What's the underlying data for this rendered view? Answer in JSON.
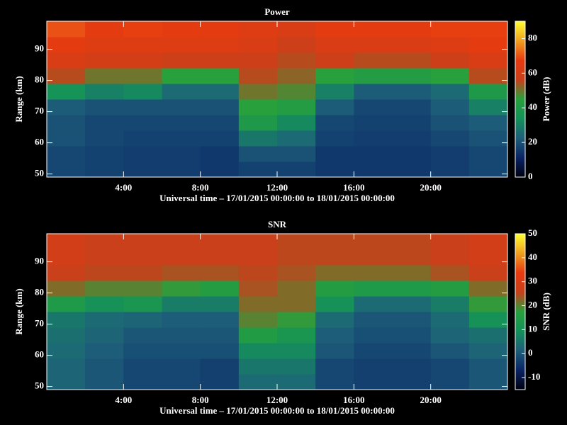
{
  "chart_data": [
    {
      "type": "heatmap",
      "title": "Power",
      "xlabel": "Universal time – 17/01/2015 00:00:00 to 18/01/2015 00:00:00",
      "ylabel": "Range (km)",
      "colorbar_label": "Power (dB)",
      "xbins": [
        0,
        2,
        4,
        6,
        8,
        10,
        12,
        14,
        16,
        18,
        20,
        22,
        24
      ],
      "ybins": [
        49,
        54,
        59,
        64,
        69,
        74,
        79,
        84,
        89,
        94,
        99
      ],
      "values": [
        [
          18,
          17,
          16,
          16,
          15,
          17,
          17,
          15,
          15,
          15,
          16,
          18
        ],
        [
          18,
          17,
          16,
          16,
          15,
          20,
          20,
          15,
          15,
          15,
          16,
          18
        ],
        [
          20,
          18,
          17,
          17,
          17,
          28,
          25,
          17,
          16,
          16,
          18,
          20
        ],
        [
          20,
          18,
          18,
          18,
          18,
          40,
          32,
          18,
          17,
          17,
          20,
          22
        ],
        [
          22,
          20,
          20,
          20,
          20,
          45,
          42,
          22,
          18,
          18,
          22,
          30
        ],
        [
          35,
          30,
          32,
          25,
          25,
          50,
          48,
          30,
          22,
          22,
          25,
          40
        ],
        [
          55,
          50,
          50,
          45,
          45,
          55,
          52,
          45,
          42,
          42,
          45,
          55
        ],
        [
          62,
          60,
          60,
          58,
          58,
          58,
          55,
          58,
          55,
          55,
          58,
          62
        ],
        [
          66,
          64,
          64,
          64,
          64,
          62,
          58,
          62,
          62,
          62,
          64,
          66
        ],
        [
          70,
          66,
          68,
          66,
          66,
          64,
          62,
          66,
          66,
          66,
          68,
          68
        ]
      ],
      "xlim": [
        0,
        24
      ],
      "xticks": [
        {
          "value": 4,
          "label": "4:00"
        },
        {
          "value": 8,
          "label": "8:00"
        },
        {
          "value": 12,
          "label": "12:00"
        },
        {
          "value": 16,
          "label": "16:00"
        },
        {
          "value": 20,
          "label": "20:00"
        }
      ],
      "ylim": [
        49,
        99
      ],
      "yticks": [
        50,
        60,
        70,
        80,
        90
      ],
      "clim": [
        0,
        90
      ],
      "cticks": [
        0,
        20,
        40,
        60,
        80
      ],
      "colormap": [
        "#000010",
        "#0a2466",
        "#1e5f7a",
        "#14915a",
        "#28a03c",
        "#c8401a",
        "#e83a10",
        "#f0a020",
        "#ffff30"
      ]
    },
    {
      "type": "heatmap",
      "title": "SNR",
      "xlabel": "Universal time – 17/01/2015 00:00:00 to 18/01/2015 00:00:00",
      "ylabel": "Range (km)",
      "colorbar_label": "SNR (dB)",
      "xbins": [
        0,
        2,
        4,
        6,
        8,
        10,
        12,
        14,
        16,
        18,
        20,
        22,
        24
      ],
      "ybins": [
        49,
        54,
        59,
        64,
        69,
        74,
        79,
        84,
        89,
        94,
        99
      ],
      "values": [
        [
          2,
          0,
          -2,
          -2,
          -3,
          3,
          3,
          -2,
          -3,
          -3,
          -2,
          0
        ],
        [
          2,
          0,
          -2,
          -2,
          -3,
          5,
          5,
          -2,
          -3,
          -3,
          -2,
          0
        ],
        [
          3,
          1,
          -1,
          -1,
          -1,
          8,
          8,
          0,
          -2,
          -2,
          0,
          2
        ],
        [
          4,
          2,
          0,
          0,
          0,
          15,
          12,
          1,
          -1,
          -1,
          2,
          4
        ],
        [
          5,
          3,
          2,
          1,
          1,
          20,
          18,
          3,
          0,
          0,
          3,
          10
        ],
        [
          14,
          10,
          12,
          6,
          6,
          22,
          22,
          10,
          3,
          3,
          6,
          18
        ],
        [
          22,
          20,
          20,
          18,
          16,
          24,
          22,
          16,
          14,
          14,
          16,
          22
        ],
        [
          26,
          25,
          25,
          24,
          24,
          25,
          24,
          22,
          22,
          22,
          24,
          26
        ],
        [
          28,
          26,
          26,
          26,
          26,
          26,
          25,
          25,
          25,
          25,
          26,
          28
        ],
        [
          28,
          26,
          26,
          26,
          26,
          26,
          25,
          25,
          25,
          25,
          26,
          28
        ]
      ],
      "xlim": [
        0,
        24
      ],
      "xticks": [
        {
          "value": 4,
          "label": "4:00"
        },
        {
          "value": 8,
          "label": "8:00"
        },
        {
          "value": 12,
          "label": "12:00"
        },
        {
          "value": 16,
          "label": "16:00"
        },
        {
          "value": 20,
          "label": "20:00"
        }
      ],
      "ylim": [
        49,
        99
      ],
      "yticks": [
        50,
        60,
        70,
        80,
        90
      ],
      "clim": [
        -15,
        50
      ],
      "cticks": [
        -10,
        0,
        10,
        20,
        30,
        40,
        50
      ],
      "colormap": [
        "#000010",
        "#0a2466",
        "#1e5f7a",
        "#14915a",
        "#28a03c",
        "#c8401a",
        "#e83a10",
        "#f0a020",
        "#ffff30"
      ]
    }
  ]
}
